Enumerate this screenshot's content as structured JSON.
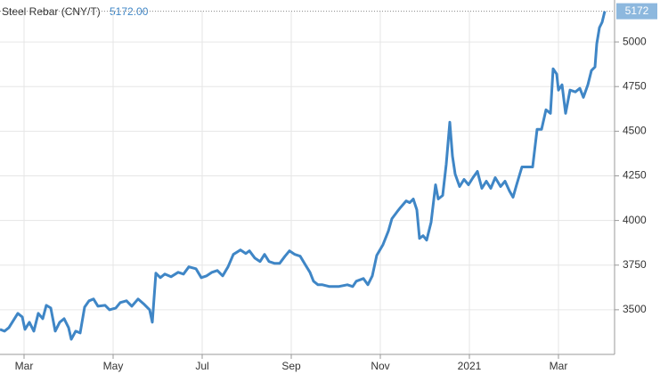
{
  "chart_data": {
    "type": "line",
    "title": "Steel Rebar (CNY/T)",
    "price_label": "5172.00",
    "color": "#3f86c6",
    "grid": true,
    "x": [
      -0.54,
      -0.44,
      -0.34,
      -0.24,
      -0.14,
      -0.04,
      0.02,
      0.12,
      0.22,
      0.32,
      0.42,
      0.5,
      0.6,
      0.7,
      0.8,
      0.9,
      1.0,
      1.06,
      1.16,
      1.26,
      1.36,
      1.46,
      1.56,
      1.66,
      1.82,
      1.92,
      2.06,
      2.16,
      2.3,
      2.42,
      2.56,
      2.7,
      2.82,
      2.88,
      2.96,
      3.06,
      3.16,
      3.3,
      3.46,
      3.58,
      3.7,
      3.86,
      3.98,
      4.1,
      4.22,
      4.34,
      4.46,
      4.58,
      4.7,
      4.86,
      4.98,
      5.06,
      5.18,
      5.3,
      5.4,
      5.5,
      5.62,
      5.74,
      5.86,
      5.96,
      6.08,
      6.2,
      6.32,
      6.42,
      6.5,
      6.6,
      6.7,
      6.86,
      7.06,
      7.26,
      7.38,
      7.46,
      7.62,
      7.72,
      7.82,
      7.92,
      8.06,
      8.18,
      8.26,
      8.38,
      8.46,
      8.58,
      8.66,
      8.74,
      8.82,
      8.88,
      8.96,
      9.04,
      9.14,
      9.24,
      9.3,
      9.4,
      9.48,
      9.56,
      9.62,
      9.68,
      9.78,
      9.88,
      9.98,
      10.08,
      10.18,
      10.28,
      10.38,
      10.48,
      10.58,
      10.7,
      10.8,
      10.9,
      10.98,
      11.06,
      11.18,
      11.42,
      11.52,
      11.62,
      11.72,
      11.82,
      11.88,
      11.96,
      12.0,
      12.08,
      12.16,
      12.26,
      12.38,
      12.48,
      12.56,
      12.66,
      12.74,
      12.82,
      12.86,
      12.92,
      12.98,
      13.04
    ],
    "values": [
      3390,
      3380,
      3400,
      3440,
      3480,
      3460,
      3390,
      3430,
      3380,
      3480,
      3450,
      3525,
      3510,
      3380,
      3430,
      3450,
      3400,
      3335,
      3380,
      3370,
      3515,
      3550,
      3560,
      3520,
      3525,
      3500,
      3510,
      3540,
      3550,
      3520,
      3560,
      3530,
      3500,
      3430,
      3705,
      3680,
      3700,
      3685,
      3710,
      3700,
      3740,
      3730,
      3680,
      3690,
      3710,
      3720,
      3690,
      3740,
      3810,
      3835,
      3815,
      3830,
      3790,
      3770,
      3810,
      3770,
      3760,
      3760,
      3800,
      3830,
      3810,
      3800,
      3750,
      3710,
      3660,
      3640,
      3640,
      3630,
      3630,
      3640,
      3630,
      3660,
      3675,
      3640,
      3690,
      3805,
      3865,
      3940,
      4010,
      4050,
      4075,
      4110,
      4100,
      4120,
      4060,
      3900,
      3915,
      3890,
      3990,
      4200,
      4120,
      4140,
      4315,
      4550,
      4360,
      4260,
      4190,
      4230,
      4200,
      4240,
      4275,
      4180,
      4220,
      4180,
      4240,
      4190,
      4220,
      4165,
      4130,
      4200,
      4300,
      4300,
      4510,
      4510,
      4620,
      4600,
      4850,
      4820,
      4730,
      4760,
      4600,
      4730,
      4720,
      4740,
      4690,
      4760,
      4840,
      4860,
      4990,
      5080,
      5110,
      5172
    ],
    "xlim": [
      -0.54,
      13.26
    ],
    "ylim": [
      3250,
      5175
    ],
    "xticks": [
      {
        "value": 0,
        "label": "Mar"
      },
      {
        "value": 2,
        "label": "May"
      },
      {
        "value": 4,
        "label": "Jul"
      },
      {
        "value": 6,
        "label": "Sep"
      },
      {
        "value": 8,
        "label": "Nov"
      },
      {
        "value": 10,
        "label": "2021"
      },
      {
        "value": 12,
        "label": "Mar"
      }
    ],
    "yticks": [
      3500,
      3750,
      4000,
      4250,
      4500,
      4750,
      5000
    ]
  }
}
